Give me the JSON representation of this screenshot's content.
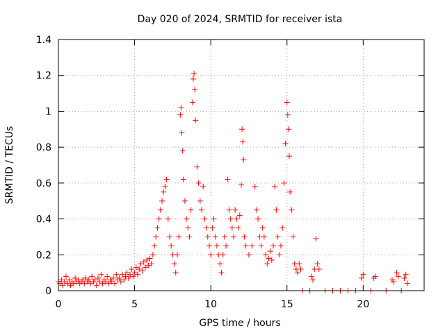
{
  "chart_data": {
    "type": "scatter",
    "title": "Day 020 of 2024, SRMTID for receiver ista",
    "xlabel": "GPS time / hours",
    "ylabel": "SRMTID / TECUs",
    "xlim": [
      0,
      24
    ],
    "ylim": [
      0,
      1.4
    ],
    "xticks": [
      0,
      5,
      10,
      15,
      20
    ],
    "xtick_labels": [
      "0",
      "5",
      "10",
      "15",
      "20"
    ],
    "yticks": [
      0,
      0.2,
      0.4,
      0.6,
      0.8,
      1.0,
      1.2,
      1.4
    ],
    "ytick_labels": [
      "0",
      "0.2",
      "0.4",
      "0.6",
      "0.8",
      "1",
      "1.2",
      "1.4"
    ],
    "grid": true,
    "marker": "+",
    "color": "#ff0000",
    "series": [
      {
        "name": "SRMTID",
        "points": [
          [
            0.0,
            0.05
          ],
          [
            0.1,
            0.04
          ],
          [
            0.2,
            0.06
          ],
          [
            0.3,
            0.03
          ],
          [
            0.4,
            0.05
          ],
          [
            0.5,
            0.08
          ],
          [
            0.6,
            0.04
          ],
          [
            0.7,
            0.06
          ],
          [
            0.8,
            0.03
          ],
          [
            0.9,
            0.05
          ],
          [
            1.0,
            0.04
          ],
          [
            1.1,
            0.07
          ],
          [
            1.2,
            0.05
          ],
          [
            1.3,
            0.06
          ],
          [
            1.4,
            0.04
          ],
          [
            1.5,
            0.05
          ],
          [
            1.6,
            0.06
          ],
          [
            1.7,
            0.04
          ],
          [
            1.8,
            0.07
          ],
          [
            1.9,
            0.05
          ],
          [
            2.0,
            0.06
          ],
          [
            2.1,
            0.04
          ],
          [
            2.2,
            0.08
          ],
          [
            2.3,
            0.05
          ],
          [
            2.4,
            0.06
          ],
          [
            2.5,
            0.03
          ],
          [
            2.6,
            0.07
          ],
          [
            2.7,
            0.05
          ],
          [
            2.8,
            0.09
          ],
          [
            2.9,
            0.04
          ],
          [
            3.0,
            0.06
          ],
          [
            3.1,
            0.05
          ],
          [
            3.2,
            0.08
          ],
          [
            3.3,
            0.04
          ],
          [
            3.4,
            0.06
          ],
          [
            3.5,
            0.05
          ],
          [
            3.6,
            0.07
          ],
          [
            3.7,
            0.04
          ],
          [
            3.8,
            0.09
          ],
          [
            3.9,
            0.06
          ],
          [
            4.0,
            0.07
          ],
          [
            4.1,
            0.05
          ],
          [
            4.2,
            0.09
          ],
          [
            4.3,
            0.06
          ],
          [
            4.4,
            0.08
          ],
          [
            4.5,
            0.1
          ],
          [
            4.6,
            0.07
          ],
          [
            4.7,
            0.09
          ],
          [
            4.8,
            0.12
          ],
          [
            4.9,
            0.08
          ],
          [
            5.0,
            0.1
          ],
          [
            5.1,
            0.13
          ],
          [
            5.2,
            0.09
          ],
          [
            5.3,
            0.12
          ],
          [
            5.4,
            0.15
          ],
          [
            5.5,
            0.11
          ],
          [
            5.6,
            0.16
          ],
          [
            5.7,
            0.13
          ],
          [
            5.8,
            0.17
          ],
          [
            5.9,
            0.14
          ],
          [
            6.0,
            0.18
          ],
          [
            6.1,
            0.15
          ],
          [
            6.2,
            0.2
          ],
          [
            6.3,
            0.25
          ],
          [
            6.4,
            0.3
          ],
          [
            6.5,
            0.35
          ],
          [
            6.6,
            0.4
          ],
          [
            6.7,
            0.45
          ],
          [
            6.8,
            0.5
          ],
          [
            6.9,
            0.55
          ],
          [
            7.0,
            0.58
          ],
          [
            7.1,
            0.62
          ],
          [
            7.2,
            0.4
          ],
          [
            7.3,
            0.3
          ],
          [
            7.4,
            0.25
          ],
          [
            7.5,
            0.2
          ],
          [
            7.6,
            0.15
          ],
          [
            7.7,
            0.1
          ],
          [
            7.8,
            0.2
          ],
          [
            7.9,
            0.3
          ],
          [
            8.0,
            0.98
          ],
          [
            8.05,
            1.02
          ],
          [
            8.1,
            0.88
          ],
          [
            8.15,
            0.78
          ],
          [
            8.2,
            0.62
          ],
          [
            8.3,
            0.5
          ],
          [
            8.4,
            0.4
          ],
          [
            8.5,
            0.35
          ],
          [
            8.6,
            0.3
          ],
          [
            8.7,
            0.45
          ],
          [
            8.8,
            1.05
          ],
          [
            8.85,
            1.18
          ],
          [
            8.9,
            1.21
          ],
          [
            8.95,
            1.12
          ],
          [
            9.0,
            0.95
          ],
          [
            9.1,
            0.69
          ],
          [
            9.2,
            0.6
          ],
          [
            9.3,
            0.5
          ],
          [
            9.4,
            0.45
          ],
          [
            9.5,
            0.58
          ],
          [
            9.6,
            0.4
          ],
          [
            9.7,
            0.35
          ],
          [
            9.8,
            0.3
          ],
          [
            9.9,
            0.25
          ],
          [
            10.0,
            0.2
          ],
          [
            10.1,
            0.35
          ],
          [
            10.2,
            0.4
          ],
          [
            10.3,
            0.3
          ],
          [
            10.4,
            0.25
          ],
          [
            10.5,
            0.2
          ],
          [
            10.6,
            0.15
          ],
          [
            10.7,
            0.1
          ],
          [
            10.8,
            0.2
          ],
          [
            10.9,
            0.3
          ],
          [
            11.0,
            0.25
          ],
          [
            11.1,
            0.62
          ],
          [
            11.2,
            0.45
          ],
          [
            11.3,
            0.4
          ],
          [
            11.4,
            0.35
          ],
          [
            11.5,
            0.3
          ],
          [
            11.6,
            0.45
          ],
          [
            11.7,
            0.4
          ],
          [
            11.8,
            0.35
          ],
          [
            11.9,
            0.42
          ],
          [
            12.0,
            0.59
          ],
          [
            12.05,
            0.9
          ],
          [
            12.1,
            0.83
          ],
          [
            12.15,
            0.73
          ],
          [
            12.2,
            0.3
          ],
          [
            12.3,
            0.25
          ],
          [
            12.5,
            0.2
          ],
          [
            12.7,
            0.25
          ],
          [
            12.9,
            0.58
          ],
          [
            13.0,
            0.45
          ],
          [
            13.1,
            0.4
          ],
          [
            13.2,
            0.3
          ],
          [
            13.3,
            0.25
          ],
          [
            13.4,
            0.35
          ],
          [
            13.5,
            0.3
          ],
          [
            13.6,
            0.2
          ],
          [
            13.7,
            0.15
          ],
          [
            13.8,
            0.18
          ],
          [
            13.9,
            0.22
          ],
          [
            14.0,
            0.17
          ],
          [
            14.1,
            0.25
          ],
          [
            14.2,
            0.58
          ],
          [
            14.3,
            0.45
          ],
          [
            14.4,
            0.3
          ],
          [
            14.5,
            0.2
          ],
          [
            14.6,
            0.25
          ],
          [
            14.7,
            0.35
          ],
          [
            14.8,
            0.6
          ],
          [
            14.9,
            0.82
          ],
          [
            15.0,
            1.05
          ],
          [
            15.05,
            0.98
          ],
          [
            15.1,
            0.9
          ],
          [
            15.15,
            0.75
          ],
          [
            15.2,
            0.55
          ],
          [
            15.3,
            0.45
          ],
          [
            15.4,
            0.3
          ],
          [
            15.5,
            0.15
          ],
          [
            15.6,
            0.12
          ],
          [
            15.7,
            0.1
          ],
          [
            15.8,
            0.15
          ],
          [
            15.9,
            0.12
          ],
          [
            16.0,
            0.0
          ],
          [
            16.5,
            0.0
          ],
          [
            16.6,
            0.08
          ],
          [
            16.7,
            0.06
          ],
          [
            16.8,
            0.12
          ],
          [
            16.9,
            0.29
          ],
          [
            17.0,
            0.15
          ],
          [
            17.1,
            0.12
          ],
          [
            17.5,
            0.0
          ],
          [
            18.0,
            0.0
          ],
          [
            18.5,
            0.0
          ],
          [
            19.0,
            0.0
          ],
          [
            19.5,
            0.0
          ],
          [
            19.9,
            0.07
          ],
          [
            20.0,
            0.09
          ],
          [
            20.5,
            0.0
          ],
          [
            20.7,
            0.07
          ],
          [
            20.8,
            0.08
          ],
          [
            21.5,
            0.0
          ],
          [
            21.9,
            0.06
          ],
          [
            22.0,
            0.05
          ],
          [
            22.2,
            0.1
          ],
          [
            22.3,
            0.08
          ],
          [
            22.5,
            0.0
          ],
          [
            22.7,
            0.07
          ],
          [
            22.8,
            0.09
          ],
          [
            22.9,
            0.04
          ]
        ]
      }
    ]
  }
}
